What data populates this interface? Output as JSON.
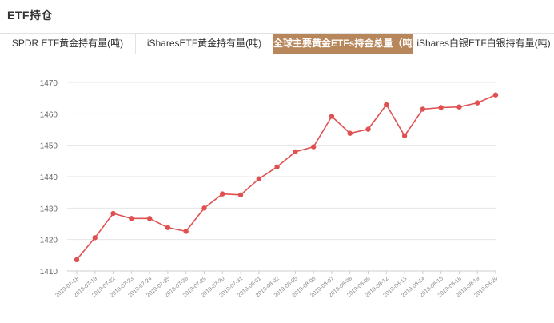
{
  "header": {
    "title": "ETF持仓"
  },
  "tabs": [
    {
      "label": "SPDR ETF黄金持有量(吨)",
      "active": false
    },
    {
      "label": "iSharesETF黄金持有量(吨)",
      "active": false
    },
    {
      "label": "全球主要黄金ETFs持金总量（吨）",
      "active": true
    },
    {
      "label": "iShares白银ETF白银持有量(吨)",
      "active": false
    }
  ],
  "colors": {
    "accent": "#b8865b",
    "line": "#e05050",
    "grid": "#e6e6e6",
    "axis_text": "#666666"
  },
  "chart_data": {
    "type": "line",
    "categories": [
      "2019-07-18",
      "2019-07-19",
      "2019-07-22",
      "2019-07-23",
      "2019-07-24",
      "2019-07-25",
      "2019-07-26",
      "2019-07-29",
      "2019-07-30",
      "2019-07-31",
      "2019-08-01",
      "2019-08-02",
      "2019-08-05",
      "2019-08-06",
      "2019-08-07",
      "2019-08-08",
      "2019-08-09",
      "2019-08-12",
      "2019-08-13",
      "2019-08-14",
      "2019-08-15",
      "2019-08-16",
      "2019-08-19",
      "2019-08-20"
    ],
    "series": [
      {
        "values": [
          1413.6,
          1420.6,
          1428.3,
          1426.7,
          1426.7,
          1423.8,
          1422.6,
          1430.0,
          1434.5,
          1434.2,
          1439.3,
          1443.1,
          1447.9,
          1449.5,
          1459.2,
          1453.8,
          1455.1,
          1462.9,
          1453.0,
          1461.5,
          1462.0,
          1462.2,
          1463.5,
          1466.0
        ]
      }
    ],
    "ylim": [
      1410,
      1470
    ],
    "yticks": [
      "1410",
      "1420",
      "1430",
      "1440",
      "1450",
      "1460",
      "1470"
    ],
    "grid": true,
    "xlabel": "",
    "ylabel": ""
  }
}
